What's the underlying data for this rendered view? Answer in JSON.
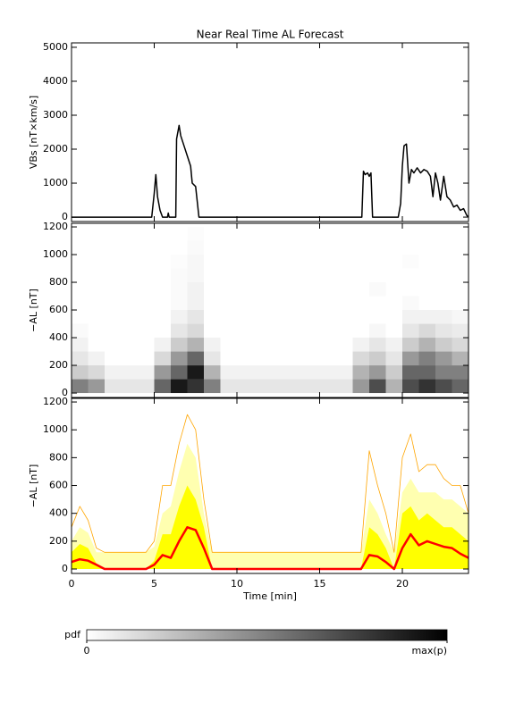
{
  "chart_data": [
    {
      "type": "line",
      "title": "Near Real Time AL Forecast",
      "ylabel": "VBs [nT×km/s]",
      "color": "#000000",
      "xlim": [
        0,
        24
      ],
      "ylim": [
        -130,
        5130
      ],
      "yticks": [
        0,
        1000,
        2000,
        3000,
        4000,
        5000
      ],
      "x": [
        0,
        4.85,
        5.0,
        5.1,
        5.2,
        5.35,
        5.5,
        5.8,
        5.85,
        5.9,
        6.3,
        6.35,
        6.5,
        6.6,
        6.8,
        7.0,
        7.2,
        7.3,
        7.5,
        7.7,
        17.55,
        17.65,
        17.75,
        17.9,
        18.0,
        18.1,
        18.2,
        19.75,
        19.9,
        20.0,
        20.1,
        20.25,
        20.4,
        20.55,
        20.7,
        20.9,
        21.1,
        21.3,
        21.5,
        21.7,
        21.85,
        22.0,
        22.15,
        22.3,
        22.5,
        22.7,
        22.9,
        23.1,
        23.3,
        23.5,
        23.7,
        23.9,
        24
      ],
      "values": [
        0,
        0,
        700,
        1250,
        600,
        200,
        0,
        0,
        120,
        0,
        0,
        2300,
        2700,
        2400,
        2100,
        1800,
        1500,
        1000,
        900,
        0,
        0,
        1350,
        1250,
        1300,
        1200,
        1300,
        0,
        0,
        400,
        1500,
        2100,
        2150,
        1000,
        1400,
        1300,
        1450,
        1300,
        1400,
        1350,
        1200,
        600,
        1300,
        1000,
        500,
        1200,
        600,
        500,
        300,
        350,
        200,
        250,
        50,
        0
      ]
    },
    {
      "type": "heatmap",
      "ylabel": "−AL [nT]",
      "xlim": [
        0,
        24
      ],
      "ylim": [
        -32,
        1226
      ],
      "yticks": [
        0,
        200,
        400,
        600,
        800,
        1000,
        1200
      ],
      "x_bins": [
        0,
        1,
        2,
        3,
        4,
        5,
        6,
        7,
        8,
        9,
        10,
        11,
        12,
        13,
        14,
        15,
        16,
        17,
        18,
        19,
        20,
        21,
        22,
        23,
        24
      ],
      "y_bins": [
        0,
        100,
        200,
        300,
        400,
        500,
        600,
        700,
        800,
        900,
        1000,
        1100,
        1200
      ],
      "z": [
        [
          0.5,
          0.2,
          0.1,
          0.05,
          0.02,
          0,
          0,
          0,
          0,
          0,
          0,
          0
        ],
        [
          0.4,
          0.15,
          0.05,
          0,
          0,
          0,
          0,
          0,
          0,
          0,
          0,
          0
        ],
        [
          0.1,
          0.05,
          0,
          0,
          0,
          0,
          0,
          0,
          0,
          0,
          0,
          0
        ],
        [
          0.1,
          0.05,
          0,
          0,
          0,
          0,
          0,
          0,
          0,
          0,
          0,
          0
        ],
        [
          0.1,
          0.05,
          0,
          0,
          0,
          0,
          0,
          0,
          0,
          0,
          0,
          0
        ],
        [
          0.6,
          0.4,
          0.15,
          0.05,
          0,
          0,
          0,
          0,
          0,
          0,
          0,
          0
        ],
        [
          0.9,
          0.6,
          0.4,
          0.2,
          0.1,
          0.05,
          0.02,
          0.02,
          0.02,
          0.01,
          0,
          0
        ],
        [
          0.8,
          0.9,
          0.6,
          0.3,
          0.15,
          0.1,
          0.05,
          0.05,
          0.03,
          0.03,
          0.02,
          0.01
        ],
        [
          0.5,
          0.3,
          0.1,
          0.05,
          0,
          0,
          0,
          0,
          0,
          0,
          0,
          0
        ],
        [
          0.1,
          0.05,
          0,
          0,
          0,
          0,
          0,
          0,
          0,
          0,
          0,
          0
        ],
        [
          0.1,
          0.05,
          0,
          0,
          0,
          0,
          0,
          0,
          0,
          0,
          0,
          0
        ],
        [
          0.1,
          0.05,
          0,
          0,
          0,
          0,
          0,
          0,
          0,
          0,
          0,
          0
        ],
        [
          0.1,
          0.05,
          0,
          0,
          0,
          0,
          0,
          0,
          0,
          0,
          0,
          0
        ],
        [
          0.1,
          0.05,
          0,
          0,
          0,
          0,
          0,
          0,
          0,
          0,
          0,
          0
        ],
        [
          0.1,
          0.05,
          0,
          0,
          0,
          0,
          0,
          0,
          0,
          0,
          0,
          0
        ],
        [
          0.1,
          0.05,
          0,
          0,
          0,
          0,
          0,
          0,
          0,
          0,
          0,
          0
        ],
        [
          0.1,
          0.05,
          0,
          0,
          0,
          0,
          0,
          0,
          0,
          0,
          0,
          0
        ],
        [
          0.4,
          0.3,
          0.15,
          0.05,
          0,
          0,
          0,
          0,
          0,
          0,
          0,
          0
        ],
        [
          0.7,
          0.4,
          0.2,
          0.1,
          0.03,
          0,
          0,
          0.02,
          0,
          0,
          0,
          0
        ],
        [
          0.3,
          0.2,
          0.1,
          0.05,
          0,
          0,
          0,
          0,
          0,
          0,
          0,
          0
        ],
        [
          0.7,
          0.6,
          0.4,
          0.2,
          0.1,
          0.05,
          0.02,
          0,
          0,
          0.01,
          0,
          0
        ],
        [
          0.8,
          0.6,
          0.5,
          0.3,
          0.15,
          0.05,
          0,
          0,
          0,
          0,
          0,
          0
        ],
        [
          0.7,
          0.5,
          0.4,
          0.2,
          0.1,
          0.05,
          0,
          0,
          0,
          0,
          0,
          0
        ],
        [
          0.6,
          0.5,
          0.3,
          0.15,
          0.08,
          0.03,
          0,
          0,
          0,
          0,
          0,
          0
        ]
      ],
      "zlim": [
        0,
        1
      ],
      "colorbar": {
        "label": "pdf",
        "ticks": [
          0,
          {
            "value": 1,
            "label": "max(p)"
          }
        ]
      }
    },
    {
      "type": "band",
      "ylabel": "−AL [nT]",
      "xlabel": "Time [min]",
      "xlim": [
        0,
        24
      ],
      "xticks": [
        0,
        5,
        10,
        15,
        20
      ],
      "ylim": [
        -32,
        1226
      ],
      "yticks": [
        0,
        200,
        400,
        600,
        800,
        1000,
        1200
      ],
      "x": [
        0,
        0.5,
        1,
        1.5,
        2,
        2.5,
        3,
        3.5,
        4,
        4.5,
        5,
        5.5,
        6,
        6.5,
        7,
        7.5,
        8,
        8.5,
        9,
        9.5,
        10,
        10.5,
        11,
        11.5,
        12,
        12.5,
        13,
        13.5,
        14,
        14.5,
        15,
        15.5,
        16,
        16.5,
        17,
        17.5,
        18,
        18.5,
        19,
        19.5,
        20,
        20.5,
        21,
        21.5,
        22,
        22.5,
        23,
        23.5,
        24
      ],
      "series": [
        {
          "color": "#ffffb0",
          "fill": true,
          "values": [
            200,
            300,
            260,
            120,
            120,
            120,
            120,
            120,
            120,
            120,
            160,
            400,
            450,
            700,
            900,
            800,
            400,
            120,
            120,
            120,
            120,
            120,
            120,
            120,
            120,
            120,
            120,
            120,
            120,
            120,
            120,
            120,
            120,
            120,
            120,
            120,
            500,
            400,
            250,
            120,
            550,
            650,
            550,
            550,
            550,
            500,
            500,
            450,
            400
          ]
        },
        {
          "color": "#ffa500",
          "fill": false,
          "values": [
            300,
            450,
            350,
            150,
            120,
            120,
            120,
            120,
            120,
            120,
            200,
            600,
            600,
            900,
            1110,
            1000,
            500,
            120,
            120,
            120,
            120,
            120,
            120,
            120,
            120,
            120,
            120,
            120,
            120,
            120,
            120,
            120,
            120,
            120,
            120,
            120,
            850,
            600,
            400,
            120,
            800,
            970,
            700,
            750,
            750,
            650,
            600,
            600,
            400
          ]
        },
        {
          "color": "#ffff00",
          "fill": true,
          "values": [
            120,
            180,
            150,
            40,
            0,
            0,
            0,
            0,
            0,
            0,
            60,
            250,
            250,
            450,
            600,
            500,
            300,
            0,
            0,
            0,
            0,
            0,
            0,
            0,
            0,
            0,
            0,
            0,
            0,
            0,
            0,
            0,
            0,
            0,
            0,
            0,
            300,
            250,
            150,
            0,
            400,
            450,
            350,
            400,
            350,
            300,
            300,
            250,
            200
          ]
        },
        {
          "color": "#ff0000",
          "fill": false,
          "values": [
            50,
            70,
            60,
            30,
            0,
            0,
            0,
            0,
            0,
            0,
            30,
            100,
            80,
            200,
            300,
            280,
            150,
            0,
            0,
            0,
            0,
            0,
            0,
            0,
            0,
            0,
            0,
            0,
            0,
            0,
            0,
            0,
            0,
            0,
            0,
            0,
            100,
            90,
            50,
            0,
            150,
            250,
            170,
            200,
            180,
            160,
            150,
            110,
            80
          ]
        }
      ]
    }
  ]
}
